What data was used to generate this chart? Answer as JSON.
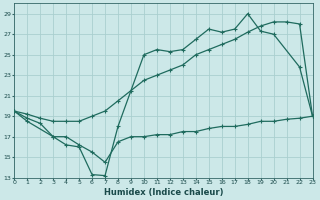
{
  "title": "",
  "xlabel": "Humidex (Indice chaleur)",
  "bg_color": "#cce8e8",
  "grid_color": "#aacfcf",
  "line_color": "#1f6b5e",
  "xlim": [
    0,
    23
  ],
  "ylim": [
    13,
    30
  ],
  "xtick_vals": [
    0,
    1,
    2,
    3,
    4,
    5,
    6,
    7,
    8,
    9,
    10,
    11,
    12,
    13,
    14,
    15,
    16,
    17,
    18,
    19,
    20,
    21,
    22,
    23
  ],
  "ytick_vals": [
    13,
    15,
    17,
    19,
    21,
    23,
    25,
    27,
    29
  ],
  "line1_x": [
    0,
    1,
    3,
    4,
    5,
    6,
    7,
    8,
    10,
    11,
    12,
    13,
    14,
    15,
    16,
    17,
    18,
    19,
    20,
    22,
    23
  ],
  "line1_y": [
    19.5,
    18.5,
    17.0,
    16.2,
    16.0,
    13.3,
    13.2,
    18.0,
    25.0,
    25.5,
    25.3,
    25.5,
    26.5,
    27.5,
    27.2,
    27.5,
    29.0,
    27.3,
    27.0,
    23.8,
    19.0
  ],
  "line2_x": [
    0,
    1,
    2,
    3,
    4,
    5,
    6,
    7,
    8,
    9,
    10,
    11,
    12,
    13,
    14,
    15,
    16,
    17,
    18,
    19,
    20,
    21,
    22,
    23
  ],
  "line2_y": [
    19.5,
    19.2,
    18.8,
    18.5,
    18.5,
    18.5,
    19.0,
    19.5,
    20.5,
    21.5,
    22.5,
    23.0,
    23.5,
    24.0,
    25.0,
    25.5,
    26.0,
    26.5,
    27.2,
    27.8,
    28.2,
    28.2,
    28.0,
    19.0
  ],
  "line3_x": [
    0,
    1,
    2,
    3,
    4,
    5,
    6,
    7,
    8,
    9,
    10,
    11,
    12,
    13,
    14,
    15,
    16,
    17,
    18,
    19,
    20,
    21,
    22,
    23
  ],
  "line3_y": [
    19.5,
    18.8,
    18.3,
    17.0,
    17.0,
    16.2,
    15.5,
    14.5,
    16.5,
    17.0,
    17.0,
    17.2,
    17.2,
    17.5,
    17.5,
    17.8,
    18.0,
    18.0,
    18.2,
    18.5,
    18.5,
    18.7,
    18.8,
    19.0
  ]
}
